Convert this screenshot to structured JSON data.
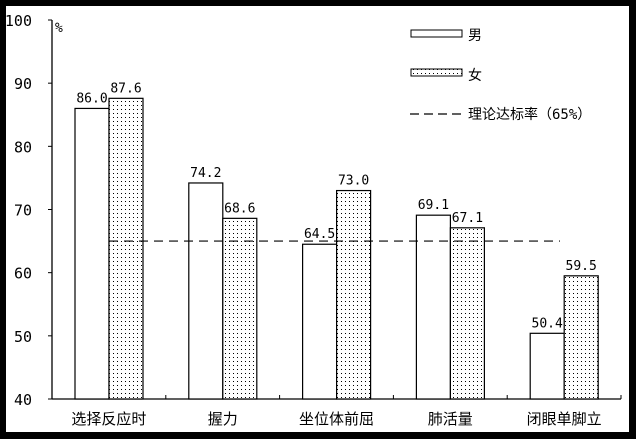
{
  "chart_data": {
    "type": "bar",
    "title": "",
    "xlabel": "",
    "ylabel": "%",
    "ylim": [
      40,
      100
    ],
    "yticks": [
      40,
      50,
      60,
      70,
      80,
      90,
      100
    ],
    "grid": false,
    "legend_position": "top-right",
    "categories": [
      "选择反应时",
      "握力",
      "坐位体前屈",
      "肺活量",
      "闭眼单脚立"
    ],
    "series": [
      {
        "name": "男",
        "pattern": "solid-white",
        "values": [
          86.0,
          74.2,
          64.5,
          69.1,
          50.4
        ]
      },
      {
        "name": "女",
        "pattern": "dotted",
        "values": [
          87.6,
          68.6,
          73.0,
          67.1,
          59.5
        ]
      }
    ],
    "reference_line": {
      "name": "理论达标率（65%）",
      "value": 65,
      "style": "dashed"
    },
    "value_labels": {
      "male": [
        "86.0",
        "74.2",
        "64.5",
        "69.1",
        "50.4"
      ],
      "female": [
        "87.6",
        "68.6",
        "73.0",
        "67.1",
        "59.5"
      ]
    }
  },
  "legend": {
    "male": "男",
    "female": "女",
    "reference": "理论达标率（65%）"
  },
  "axis": {
    "y_unit": "%",
    "y_ticks": [
      "100",
      "90",
      "80",
      "70",
      "60",
      "50",
      "40"
    ]
  }
}
